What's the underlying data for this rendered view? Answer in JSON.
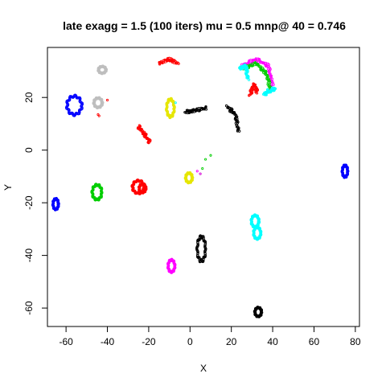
{
  "chart_data": {
    "type": "scatter",
    "title": "late exagg = 1.5 (100 iters) mu = 0.5 mnp@ 40 = 0.746",
    "xlabel": "X",
    "ylabel": "Y",
    "xlim": [
      -69,
      82
    ],
    "ylim": [
      -67,
      39
    ],
    "x_ticks": [
      -60,
      -40,
      -20,
      0,
      20,
      40,
      60,
      80
    ],
    "y_ticks": [
      -60,
      -40,
      -20,
      0,
      20
    ],
    "grid": false,
    "legend": "none",
    "colors": {
      "black": "#000000",
      "red": "#ff0000",
      "green": "#00cd00",
      "blue": "#0000ff",
      "cyan": "#00ffff",
      "magenta": "#ff00ff",
      "yellow": "#e6e600",
      "gray": "#bebebe"
    },
    "clusters": [
      {
        "shape": "ellipse",
        "color": "blue",
        "cx": -56,
        "cy": 17,
        "rx": 3.5,
        "ry": 3.5,
        "rot": 0
      },
      {
        "shape": "ellipse",
        "color": "blue",
        "cx": -65,
        "cy": -20.5,
        "rx": 1.3,
        "ry": 2,
        "rot": 0
      },
      {
        "shape": "ellipse",
        "color": "blue",
        "cx": 75,
        "cy": -8,
        "rx": 1.3,
        "ry": 2.2,
        "rot": 0
      },
      {
        "shape": "ellipse",
        "color": "green",
        "cx": -45,
        "cy": -16,
        "rx": 2.3,
        "ry": 2.8,
        "rot": 0
      },
      {
        "shape": "ellipse",
        "color": "red",
        "cx": -25,
        "cy": -14,
        "rx": 2.8,
        "ry": 2.4,
        "rot": 0
      },
      {
        "shape": "ellipse",
        "color": "red",
        "cx": -23,
        "cy": -14.5,
        "rx": 1.6,
        "ry": 1.6,
        "rot": 0
      },
      {
        "shape": "ellipse",
        "color": "magenta",
        "cx": -9,
        "cy": -44,
        "rx": 1.6,
        "ry": 2.3,
        "rot": 0
      },
      {
        "shape": "ellipse",
        "color": "yellow",
        "cx": -9.5,
        "cy": 16,
        "rx": 1.8,
        "ry": 3.3,
        "rot": 0
      },
      {
        "shape": "ellipse",
        "color": "yellow",
        "cx": -0.5,
        "cy": -10.5,
        "rx": 1.6,
        "ry": 1.8,
        "rot": 0
      },
      {
        "shape": "ellipse",
        "color": "black",
        "cx": 5.5,
        "cy": -37.5,
        "rx": 2,
        "ry": 4.6,
        "rot": 0
      },
      {
        "shape": "ellipse",
        "color": "black",
        "cx": 33,
        "cy": -61.5,
        "rx": 1.6,
        "ry": 1.7,
        "rot": 0
      },
      {
        "shape": "ellipse",
        "color": "cyan",
        "cx": 31.5,
        "cy": -27,
        "rx": 1.8,
        "ry": 2.2,
        "rot": 0
      },
      {
        "shape": "ellipse",
        "color": "cyan",
        "cx": 32.5,
        "cy": -31.5,
        "rx": 1.7,
        "ry": 2.2,
        "rot": 0
      },
      {
        "shape": "ellipse",
        "color": "gray",
        "cx": -42.5,
        "cy": 30.5,
        "rx": 1.8,
        "ry": 1.3,
        "rot": 0
      },
      {
        "shape": "ellipse",
        "color": "gray",
        "cx": -44.5,
        "cy": 18,
        "rx": 2,
        "ry": 1.8,
        "rot": 0
      },
      {
        "shape": "curve",
        "color": "red",
        "points": [
          [
            -15,
            33
          ],
          [
            -10,
            34.5
          ],
          [
            -6,
            33
          ]
        ]
      },
      {
        "shape": "curve",
        "color": "red",
        "points": [
          [
            -25,
            9
          ],
          [
            -22,
            6
          ],
          [
            -19.5,
            3
          ]
        ]
      },
      {
        "shape": "curve",
        "color": "black",
        "points": [
          [
            -2,
            14.5
          ],
          [
            2,
            15
          ],
          [
            8,
            16
          ]
        ]
      },
      {
        "shape": "curve",
        "color": "black",
        "points": [
          [
            18,
            16.5
          ],
          [
            22,
            13.5
          ],
          [
            23.5,
            7
          ]
        ]
      },
      {
        "shape": "curve",
        "color": "magenta",
        "points": [
          [
            25,
            32
          ],
          [
            32,
            34.5
          ],
          [
            38,
            32
          ],
          [
            40,
            24
          ]
        ]
      },
      {
        "shape": "curve",
        "color": "green",
        "points": [
          [
            26,
            31
          ],
          [
            32,
            33
          ],
          [
            37,
            29
          ],
          [
            39,
            23
          ]
        ]
      },
      {
        "shape": "curve",
        "color": "cyan",
        "points": [
          [
            24,
            31
          ],
          [
            27,
            32
          ],
          [
            28,
            27
          ]
        ]
      },
      {
        "shape": "curve",
        "color": "cyan",
        "points": [
          [
            39,
            22.5
          ],
          [
            41,
            23.5
          ]
        ]
      },
      {
        "shape": "curve",
        "color": "red",
        "points": [
          [
            29,
            21
          ],
          [
            31,
            25
          ],
          [
            32.5,
            22
          ]
        ]
      },
      {
        "shape": "curve",
        "color": "cyan",
        "points": [
          [
            36,
            21
          ],
          [
            38,
            22.5
          ]
        ]
      },
      {
        "shape": "dots",
        "color": "green",
        "points": [
          [
            10,
            -2
          ],
          [
            7.5,
            -3.5
          ],
          [
            6,
            -7
          ],
          [
            5,
            -9
          ]
        ]
      },
      {
        "shape": "dots",
        "color": "magenta",
        "points": [
          [
            3.5,
            -8
          ],
          [
            5,
            -9
          ]
        ]
      },
      {
        "shape": "dots",
        "color": "cyan",
        "points": [
          [
            -7,
            18
          ]
        ]
      },
      {
        "shape": "dots",
        "color": "red",
        "points": [
          [
            -44.5,
            13.5
          ],
          [
            -44,
            13
          ]
        ]
      },
      {
        "shape": "dots",
        "color": "red",
        "points": [
          [
            -40,
            19
          ]
        ]
      }
    ]
  }
}
